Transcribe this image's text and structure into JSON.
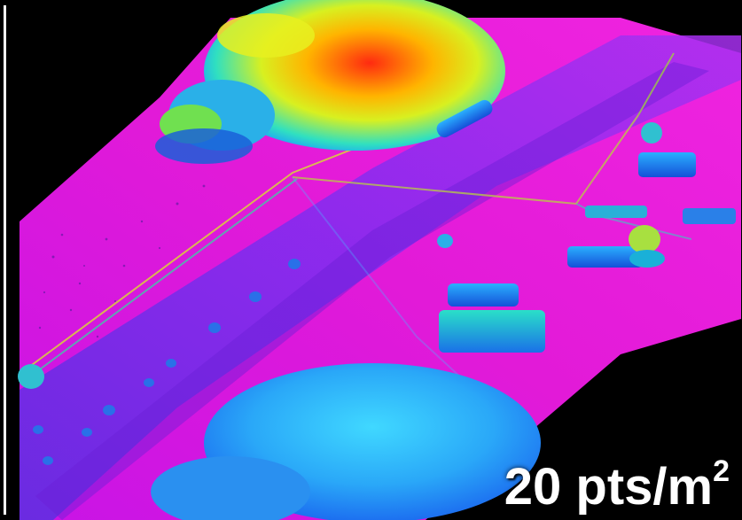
{
  "image": {
    "subject": "lidar-point-cloud-aerial",
    "colors": {
      "ground": "#e815e0",
      "road": "#8a2bf0",
      "low_vegetation": "#1e90ff",
      "high_canopy": "#ff3010",
      "background": "#000000"
    }
  },
  "overlay": {
    "value": "20",
    "unit": "pts/m",
    "unit_superscript": "2"
  }
}
